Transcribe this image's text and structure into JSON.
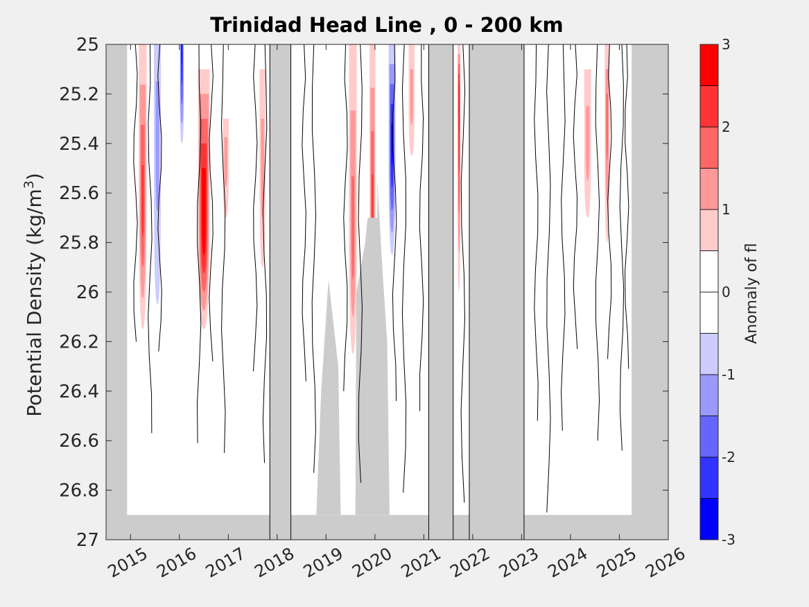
{
  "chart_data": {
    "type": "heatmap",
    "title": "Trinidad Head Line , 0 - 200 km",
    "xlabel": "",
    "ylabel": "Potential Density (kg/m",
    "ylabel_sup": "3",
    "ylabel_close": ")",
    "xlim": [
      2014.5,
      2026
    ],
    "ylim": [
      25,
      27
    ],
    "y_reversed": true,
    "x_ticks": [
      "2015",
      "2016",
      "2017",
      "2018",
      "2019",
      "2020",
      "2021",
      "2022",
      "2023",
      "2024",
      "2025",
      "2026"
    ],
    "y_ticks": [
      "25",
      "25.2",
      "25.4",
      "25.6",
      "25.8",
      "26",
      "26.2",
      "26.4",
      "26.6",
      "26.8",
      "27"
    ],
    "colorbar": {
      "label": "Anomaly of fl",
      "range": [
        -3,
        3
      ],
      "ticks": [
        "-3",
        "-2",
        "-1",
        "0",
        "1",
        "2",
        "3"
      ],
      "levels": [
        -3,
        -2.5,
        -2,
        -1.5,
        -1,
        -0.5,
        0,
        0.5,
        1,
        1.5,
        2,
        2.5,
        3
      ],
      "colors": [
        "#0000ff",
        "#3333ff",
        "#6666ff",
        "#9999ff",
        "#ccccff",
        "#ffffff",
        "#ffffff",
        "#ffcccc",
        "#ff9999",
        "#ff6666",
        "#ff3333",
        "#ff0000"
      ]
    },
    "missing_color": "#cccccc",
    "no_data_periods": [
      [
        2014.5,
        2014.93
      ],
      [
        2017.85,
        2018.28
      ],
      [
        2021.1,
        2021.6
      ],
      [
        2021.93,
        2023.05
      ],
      [
        2025.25,
        2026
      ]
    ],
    "deep_no_data_below": 26.9,
    "anomaly_features": [
      {
        "x": 2015.25,
        "width": 0.16,
        "sigma_top": 25.0,
        "sigma_bottom": 26.15,
        "peak": 2.2,
        "peak_sigma": 25.65
      },
      {
        "x": 2015.55,
        "width": 0.14,
        "sigma_top": 25.0,
        "sigma_bottom": 26.05,
        "peak": -0.9,
        "peak_sigma": 25.3
      },
      {
        "x": 2016.05,
        "width": 0.08,
        "sigma_top": 25.0,
        "sigma_bottom": 25.4,
        "peak": -2.5,
        "peak_sigma": 25.0
      },
      {
        "x": 2016.5,
        "width": 0.24,
        "sigma_top": 25.1,
        "sigma_bottom": 26.15,
        "peak": 3.0,
        "peak_sigma": 25.7
      },
      {
        "x": 2016.95,
        "width": 0.12,
        "sigma_top": 25.3,
        "sigma_bottom": 25.7,
        "peak": 0.9,
        "peak_sigma": 25.45
      },
      {
        "x": 2017.7,
        "width": 0.12,
        "sigma_top": 25.1,
        "sigma_bottom": 25.9,
        "peak": 0.8,
        "peak_sigma": 25.5
      },
      {
        "x": 2019.55,
        "width": 0.16,
        "sigma_top": 25.0,
        "sigma_bottom": 26.25,
        "peak": 1.5,
        "peak_sigma": 25.8
      },
      {
        "x": 2019.95,
        "width": 0.12,
        "sigma_top": 25.0,
        "sigma_bottom": 26.0,
        "peak": 2.0,
        "peak_sigma": 25.7
      },
      {
        "x": 2020.35,
        "width": 0.14,
        "sigma_top": 25.0,
        "sigma_bottom": 25.85,
        "peak": -2.4,
        "peak_sigma": 25.4
      },
      {
        "x": 2020.75,
        "width": 0.12,
        "sigma_top": 25.0,
        "sigma_bottom": 25.45,
        "peak": 0.8,
        "peak_sigma": 25.2
      },
      {
        "x": 2021.72,
        "width": 0.06,
        "sigma_top": 25.0,
        "sigma_bottom": 26.0,
        "peak": 2.6,
        "peak_sigma": 25.2
      },
      {
        "x": 2024.35,
        "width": 0.14,
        "sigma_top": 25.1,
        "sigma_bottom": 25.7,
        "peak": 1.2,
        "peak_sigma": 25.4
      },
      {
        "x": 2024.75,
        "width": 0.1,
        "sigma_top": 25.0,
        "sigma_bottom": 25.8,
        "peak": 1.6,
        "peak_sigma": 25.3
      }
    ]
  }
}
